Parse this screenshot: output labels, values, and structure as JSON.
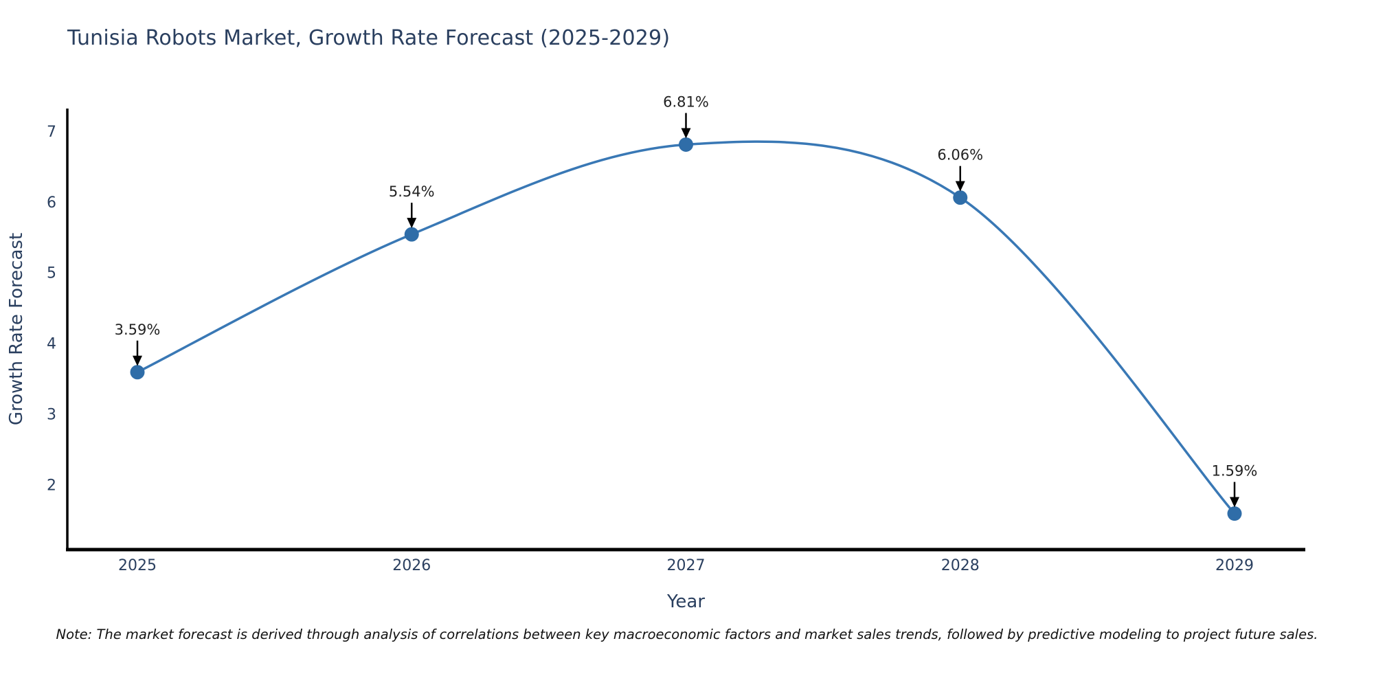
{
  "title": "Tunisia Robots Market, Growth Rate Forecast (2025-2029)",
  "note": "Note: The market forecast is derived through analysis of correlations between key macroeconomic factors and market sales trends, followed by predictive modeling to project future sales.",
  "chart_data": {
    "type": "line",
    "line_shape": "spline",
    "title": "Tunisia Robots Market, Growth Rate Forecast (2025-2029)",
    "xlabel": "Year",
    "ylabel": "Growth Rate Forecast",
    "x": [
      2025,
      2026,
      2027,
      2028,
      2029
    ],
    "y": [
      3.59,
      5.54,
      6.81,
      6.06,
      1.59
    ],
    "point_labels": [
      "3.59%",
      "5.54%",
      "6.81%",
      "6.06%",
      "1.59%"
    ],
    "xticks": [
      "2025",
      "2026",
      "2027",
      "2028",
      "2029"
    ],
    "yticks": [
      2,
      3,
      4,
      5,
      6,
      7
    ],
    "ylim": [
      1.08,
      7.32
    ],
    "grid": false,
    "legend": "none",
    "colors": {
      "line": "#3978b5",
      "marker": "#2f6da8",
      "axis": "#000000",
      "tick_text": "#2a3f5f",
      "axis_title_text": "#2a3f5f",
      "annotation_text": "#222222",
      "arrow": "#000000"
    }
  }
}
